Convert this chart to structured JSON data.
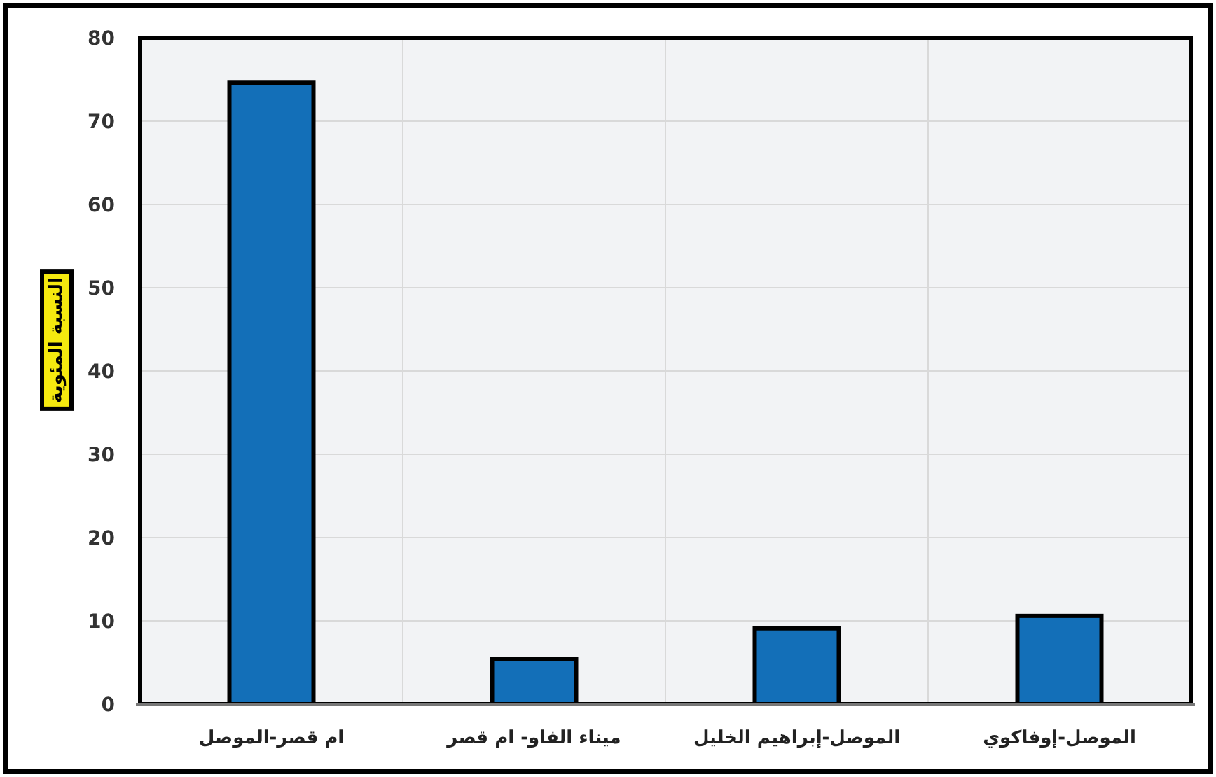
{
  "chart_data": {
    "type": "bar",
    "ylabel": "النسبة المئوية",
    "categories": [
      "ام قصر-الموصل",
      "ميناء الفاو- ام قصر",
      "الموصل-إبراهيم الخليل",
      "الموصل-إوفاكوي"
    ],
    "values": [
      74.6,
      5.4,
      9.1,
      10.6
    ],
    "color": "#136fb8",
    "ylim": [
      0,
      80
    ],
    "yticks": [
      0,
      10,
      20,
      30,
      40,
      50,
      60,
      70,
      80
    ],
    "grid": true
  }
}
